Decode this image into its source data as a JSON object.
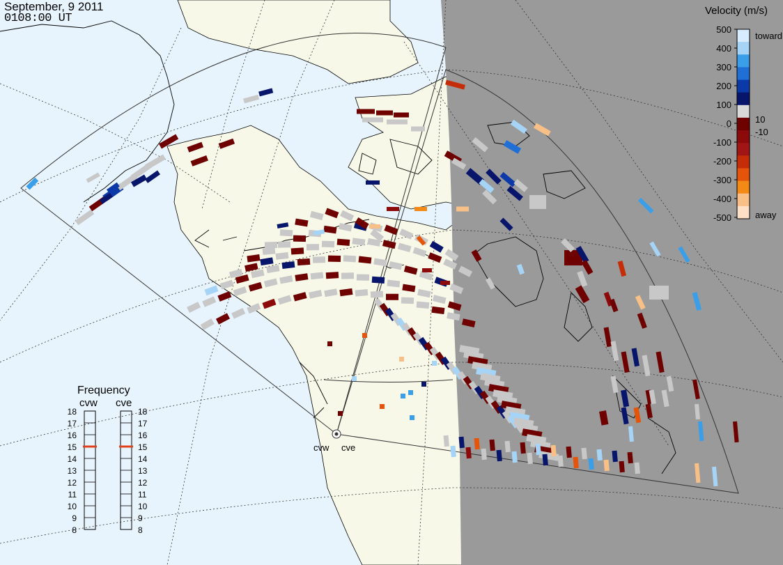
{
  "header": {
    "date": "September, 9 2011",
    "time": "0108:00 UT"
  },
  "radars": [
    {
      "id": "cvw",
      "label": "cvw"
    },
    {
      "id": "cve",
      "label": "cve"
    }
  ],
  "colorbar": {
    "title": "Velocity (m/s)",
    "tick_labels": [
      "500",
      "400",
      "300",
      "200",
      "100",
      "0",
      "-100",
      "-200",
      "-300",
      "-400",
      "-500"
    ],
    "inner_labels": [
      "10",
      "-10"
    ],
    "toward_label": "toward",
    "away_label": "away",
    "colors": [
      "#d8ecff",
      "#a6d4f6",
      "#3a9fe8",
      "#1f6fd6",
      "#0b3aa8",
      "#07156b",
      "#d9d9d9",
      "#6e0000",
      "#8c0a0a",
      "#a11515",
      "#c42d08",
      "#e4540a",
      "#f48a16",
      "#f8c087",
      "#fde0c6"
    ]
  },
  "frequency": {
    "title": "Frequency",
    "columns": [
      {
        "label": "cvw",
        "selected_mhz": 15
      },
      {
        "label": "cve",
        "selected_mhz": 15
      }
    ],
    "ticks": [
      "18",
      "17",
      "16",
      "15",
      "14",
      "13",
      "12",
      "11",
      "10",
      "9",
      "8"
    ],
    "min_mhz": 8,
    "max_mhz": 18,
    "marker_color": "#e0401a"
  },
  "map": {
    "ocean_color": "#e8f4fd",
    "land_color": "#f8f8e8",
    "night_color": "#9a9a9a",
    "no_velocity_color": "#c8c8c8"
  }
}
